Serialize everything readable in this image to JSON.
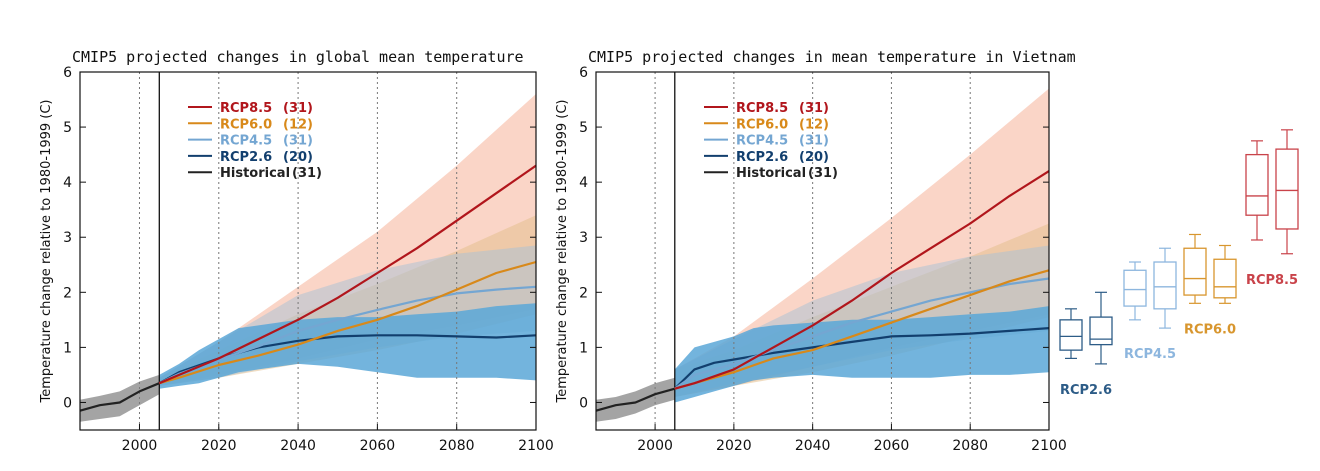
{
  "colors": {
    "rcp85": "#b1161c",
    "rcp60": "#d8891a",
    "rcp45": "#74a6d2",
    "rcp26": "#123f6e",
    "hist": "#222222",
    "band85": "#f8c7b4",
    "band60": "#e3bf8e",
    "band45": "#a8c2d6",
    "band26": "#5aa7d7",
    "bandHist": "#9a9a9a",
    "box85": "#c9434a",
    "box60": "#d8962e",
    "box45": "#8db6de",
    "box26": "#2d5c87"
  },
  "chart_data": [
    {
      "type": "line",
      "title": "CMIP5 projected changes in global mean temperature",
      "ylabel": "Temperature change relative to 1980-1999 (C)",
      "xlabel": "",
      "xlim": [
        1985,
        2100
      ],
      "ylim": [
        -0.5,
        6
      ],
      "xticks": [
        "2000",
        "2020",
        "2040",
        "2060",
        "2080",
        "2100"
      ],
      "yticks": [
        "0",
        "1",
        "2",
        "3",
        "4",
        "5",
        "6"
      ],
      "reference_line_x": 2005,
      "grid": "dotted vertical lines at 2000, 2020, 2040, 2060, 2080",
      "legend_position": "top-left",
      "series": [
        {
          "key": "rcp85",
          "name": "RCP8.5",
          "count": "(31)",
          "x": [
            2005,
            2010,
            2020,
            2030,
            2040,
            2050,
            2060,
            2070,
            2080,
            2090,
            2100
          ],
          "y": [
            0.35,
            0.5,
            0.8,
            1.15,
            1.5,
            1.9,
            2.35,
            2.8,
            3.3,
            3.8,
            4.3
          ],
          "band_x": [
            2005,
            2020,
            2040,
            2060,
            2080,
            2100
          ],
          "band_low": [
            0.3,
            0.5,
            0.8,
            1.15,
            1.4,
            1.7
          ],
          "band_high": [
            0.45,
            1.1,
            2.1,
            3.1,
            4.3,
            5.6
          ]
        },
        {
          "key": "rcp60",
          "name": "RCP6.0",
          "count": "(12)",
          "x": [
            2005,
            2010,
            2020,
            2030,
            2040,
            2050,
            2060,
            2070,
            2080,
            2090,
            2100
          ],
          "y": [
            0.35,
            0.45,
            0.68,
            0.85,
            1.05,
            1.3,
            1.5,
            1.75,
            2.05,
            2.35,
            2.55
          ],
          "band_x": [
            2005,
            2020,
            2040,
            2060,
            2080,
            2100
          ],
          "band_low": [
            0.3,
            0.45,
            0.7,
            0.95,
            1.25,
            1.6
          ],
          "band_high": [
            0.45,
            0.95,
            1.6,
            2.15,
            2.75,
            3.4
          ]
        },
        {
          "key": "rcp45",
          "name": "RCP4.5",
          "count": "(31)",
          "x": [
            2005,
            2010,
            2020,
            2030,
            2040,
            2050,
            2060,
            2070,
            2080,
            2090,
            2100
          ],
          "y": [
            0.35,
            0.52,
            0.78,
            1.02,
            1.3,
            1.5,
            1.68,
            1.85,
            1.98,
            2.05,
            2.1
          ],
          "band_x": [
            2005,
            2020,
            2040,
            2060,
            2080,
            2100
          ],
          "band_low": [
            0.3,
            0.45,
            0.75,
            1.0,
            1.2,
            1.3
          ],
          "band_high": [
            0.45,
            1.1,
            1.95,
            2.4,
            2.7,
            2.85
          ]
        },
        {
          "key": "rcp26",
          "name": "RCP2.6",
          "count": "(20)",
          "x": [
            2005,
            2010,
            2020,
            2030,
            2040,
            2050,
            2060,
            2070,
            2080,
            2090,
            2100
          ],
          "y": [
            0.35,
            0.55,
            0.8,
            1.0,
            1.12,
            1.2,
            1.22,
            1.22,
            1.2,
            1.18,
            1.22
          ],
          "band_x": [
            2005,
            2010,
            2015,
            2020,
            2025,
            2030,
            2040,
            2050,
            2060,
            2070,
            2080,
            2090,
            2100
          ],
          "band_low": [
            0.25,
            0.3,
            0.35,
            0.45,
            0.55,
            0.6,
            0.7,
            0.65,
            0.55,
            0.45,
            0.45,
            0.45,
            0.4
          ],
          "band_high": [
            0.5,
            0.7,
            0.95,
            1.15,
            1.35,
            1.4,
            1.5,
            1.55,
            1.55,
            1.6,
            1.65,
            1.75,
            1.8
          ]
        },
        {
          "key": "hist",
          "name": "Historical",
          "count": "(31)",
          "x": [
            1985,
            1990,
            1995,
            2000,
            2005
          ],
          "y": [
            -0.15,
            -0.05,
            0.0,
            0.2,
            0.35
          ],
          "band_x": [
            1985,
            1990,
            1995,
            2000,
            2005
          ],
          "band_low": [
            -0.35,
            -0.3,
            -0.25,
            -0.05,
            0.15
          ],
          "band_high": [
            0.05,
            0.12,
            0.2,
            0.38,
            0.5
          ]
        }
      ]
    },
    {
      "type": "line",
      "title": "CMIP5 projected changes in mean temperature in Vietnam",
      "ylabel": "Temperature change relative to 1980-1999 (C)",
      "xlabel": "",
      "xlim": [
        1985,
        2100
      ],
      "ylim": [
        -0.5,
        6
      ],
      "xticks": [
        "2000",
        "2020",
        "2040",
        "2060",
        "2080",
        "2100"
      ],
      "yticks": [
        "0",
        "1",
        "2",
        "3",
        "4",
        "5",
        "6"
      ],
      "reference_line_x": 2005,
      "grid": "dotted vertical lines at 2000, 2020, 2040, 2060, 2080",
      "legend_position": "top-left",
      "series": [
        {
          "key": "rcp85",
          "name": "RCP8.5",
          "count": "(31)",
          "x": [
            2005,
            2010,
            2020,
            2030,
            2040,
            2050,
            2060,
            2070,
            2080,
            2090,
            2100
          ],
          "y": [
            0.25,
            0.35,
            0.6,
            1.0,
            1.4,
            1.85,
            2.35,
            2.8,
            3.25,
            3.75,
            4.2
          ],
          "band_x": [
            2005,
            2020,
            2040,
            2060,
            2080,
            2100
          ],
          "band_low": [
            0.1,
            0.3,
            0.65,
            1.0,
            1.3,
            1.6
          ],
          "band_high": [
            0.6,
            1.2,
            2.25,
            3.35,
            4.5,
            5.7
          ]
        },
        {
          "key": "rcp60",
          "name": "RCP6.0",
          "count": "(12)",
          "x": [
            2005,
            2010,
            2020,
            2030,
            2040,
            2050,
            2060,
            2070,
            2080,
            2090,
            2100
          ],
          "y": [
            0.25,
            0.35,
            0.55,
            0.8,
            0.95,
            1.2,
            1.45,
            1.7,
            1.95,
            2.2,
            2.4
          ],
          "band_x": [
            2005,
            2020,
            2040,
            2060,
            2080,
            2100
          ],
          "band_low": [
            0.1,
            0.3,
            0.55,
            0.85,
            1.2,
            1.55
          ],
          "band_high": [
            0.6,
            0.95,
            1.55,
            2.1,
            2.65,
            3.25
          ]
        },
        {
          "key": "rcp45",
          "name": "RCP4.5",
          "count": "(31)",
          "x": [
            2005,
            2010,
            2020,
            2030,
            2040,
            2050,
            2060,
            2070,
            2080,
            2090,
            2100
          ],
          "y": [
            0.25,
            0.5,
            0.7,
            0.95,
            1.2,
            1.45,
            1.65,
            1.85,
            2.0,
            2.15,
            2.25
          ],
          "band_x": [
            2005,
            2020,
            2040,
            2060,
            2080,
            2100
          ],
          "band_low": [
            0.1,
            0.35,
            0.65,
            0.95,
            1.15,
            1.3
          ],
          "band_high": [
            0.6,
            1.15,
            1.85,
            2.35,
            2.65,
            2.85
          ]
        },
        {
          "key": "rcp26",
          "name": "RCP2.6",
          "count": "(20)",
          "x": [
            2005,
            2010,
            2015,
            2020,
            2030,
            2040,
            2050,
            2060,
            2070,
            2080,
            2090,
            2100
          ],
          "y": [
            0.25,
            0.6,
            0.72,
            0.78,
            0.9,
            1.0,
            1.1,
            1.2,
            1.22,
            1.25,
            1.3,
            1.35
          ],
          "band_x": [
            2005,
            2010,
            2015,
            2020,
            2025,
            2030,
            2040,
            2050,
            2060,
            2070,
            2080,
            2090,
            2100
          ],
          "band_low": [
            0.0,
            0.1,
            0.2,
            0.3,
            0.4,
            0.45,
            0.5,
            0.45,
            0.45,
            0.45,
            0.5,
            0.5,
            0.55
          ],
          "band_high": [
            0.6,
            1.0,
            1.1,
            1.2,
            1.35,
            1.4,
            1.45,
            1.5,
            1.5,
            1.55,
            1.6,
            1.65,
            1.75
          ]
        },
        {
          "key": "hist",
          "name": "Historical",
          "count": "(31)",
          "x": [
            1985,
            1990,
            1995,
            2000,
            2005
          ],
          "y": [
            -0.15,
            -0.05,
            0.0,
            0.15,
            0.25
          ],
          "band_x": [
            1985,
            1990,
            1995,
            2000,
            2005
          ],
          "band_low": [
            -0.35,
            -0.3,
            -0.2,
            -0.05,
            0.05
          ],
          "band_high": [
            0.05,
            0.1,
            0.2,
            0.35,
            0.45
          ]
        }
      ]
    },
    {
      "type": "box",
      "ylim": [
        -0.5,
        6
      ],
      "note": "paired box plots per scenario sharing the Vietnam panel temperature scale",
      "groups": [
        {
          "key": "box26",
          "label": "RCP2.6",
          "boxes": [
            {
              "min": 0.8,
              "q1": 0.95,
              "median": 1.2,
              "q3": 1.5,
              "max": 1.7
            },
            {
              "min": 0.7,
              "q1": 1.05,
              "median": 1.15,
              "q3": 1.55,
              "max": 2.0
            }
          ]
        },
        {
          "key": "box45",
          "label": "RCP4.5",
          "boxes": [
            {
              "min": 1.5,
              "q1": 1.75,
              "median": 2.05,
              "q3": 2.4,
              "max": 2.55
            },
            {
              "min": 1.35,
              "q1": 1.7,
              "median": 2.1,
              "q3": 2.55,
              "max": 2.8
            }
          ]
        },
        {
          "key": "box60",
          "label": "RCP6.0",
          "boxes": [
            {
              "min": 1.8,
              "q1": 1.95,
              "median": 2.25,
              "q3": 2.8,
              "max": 3.05
            },
            {
              "min": 1.8,
              "q1": 1.9,
              "median": 2.1,
              "q3": 2.6,
              "max": 2.85
            }
          ]
        },
        {
          "key": "box85",
          "label": "RCP8.5",
          "boxes": [
            {
              "min": 2.95,
              "q1": 3.4,
              "median": 3.75,
              "q3": 4.5,
              "max": 4.75
            },
            {
              "min": 2.7,
              "q1": 3.15,
              "median": 3.85,
              "q3": 4.6,
              "max": 4.95
            }
          ]
        }
      ]
    }
  ]
}
